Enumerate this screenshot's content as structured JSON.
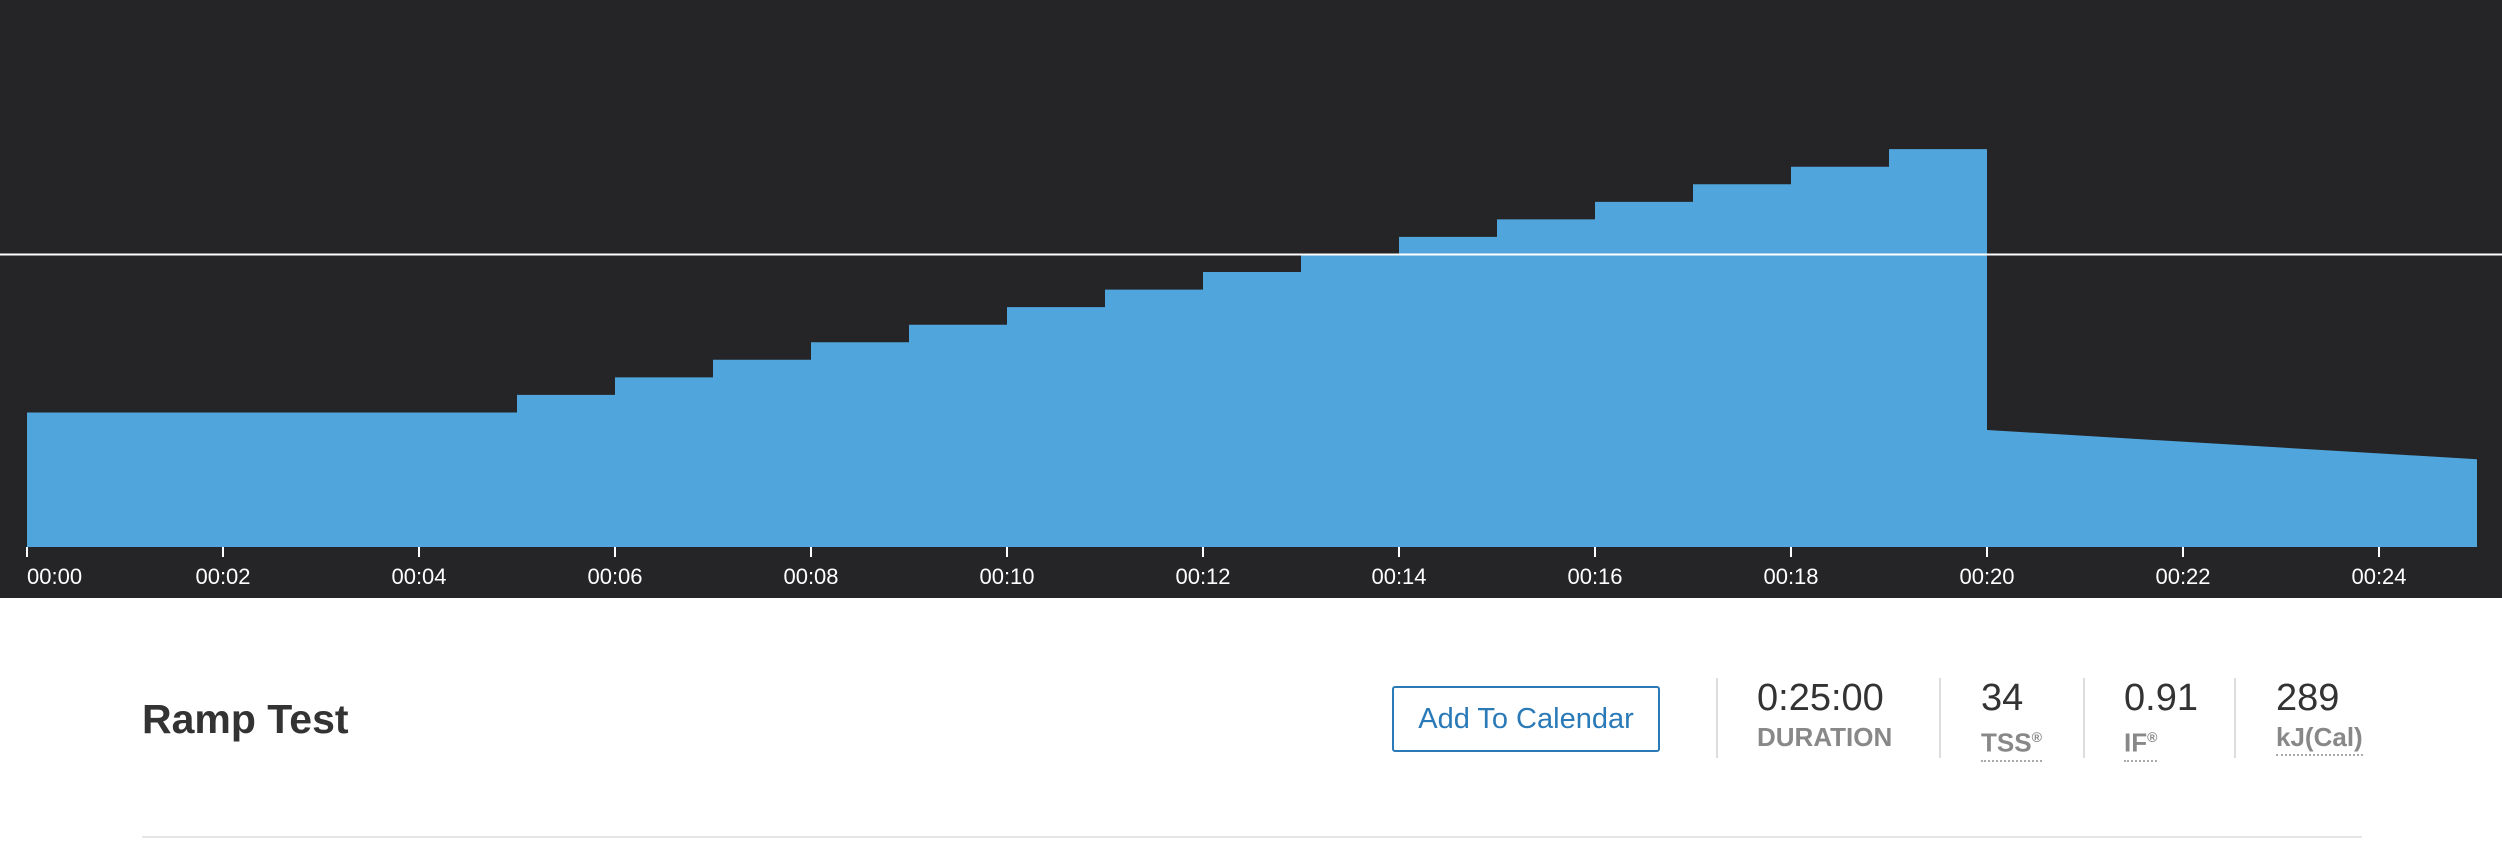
{
  "chart_data": {
    "type": "workout",
    "xlim": [
      0,
      25
    ],
    "ylim": [
      0,
      187
    ],
    "threshold": 100,
    "color": "#50a6dc",
    "xticks": [
      {
        "value": 0,
        "label": "00:00"
      },
      {
        "value": 2,
        "label": "00:02"
      },
      {
        "value": 4,
        "label": "00:04"
      },
      {
        "value": 6,
        "label": "00:06"
      },
      {
        "value": 8,
        "label": "00:08"
      },
      {
        "value": 10,
        "label": "00:10"
      },
      {
        "value": 12,
        "label": "00:12"
      },
      {
        "value": 14,
        "label": "00:14"
      },
      {
        "value": 16,
        "label": "00:16"
      },
      {
        "value": 18,
        "label": "00:18"
      },
      {
        "value": 20,
        "label": "00:20"
      },
      {
        "value": 22,
        "label": "00:22"
      },
      {
        "value": 24,
        "label": "00:24"
      }
    ],
    "segments": [
      {
        "start": 0,
        "end": 5,
        "from": 46,
        "to": 46
      },
      {
        "start": 5,
        "end": 6,
        "from": 52,
        "to": 52
      },
      {
        "start": 6,
        "end": 7,
        "from": 58,
        "to": 58
      },
      {
        "start": 7,
        "end": 8,
        "from": 64,
        "to": 64
      },
      {
        "start": 8,
        "end": 9,
        "from": 70,
        "to": 70
      },
      {
        "start": 9,
        "end": 10,
        "from": 76,
        "to": 76
      },
      {
        "start": 10,
        "end": 11,
        "from": 82,
        "to": 82
      },
      {
        "start": 11,
        "end": 12,
        "from": 88,
        "to": 88
      },
      {
        "start": 12,
        "end": 13,
        "from": 94,
        "to": 94
      },
      {
        "start": 13,
        "end": 14,
        "from": 100,
        "to": 100
      },
      {
        "start": 14,
        "end": 15,
        "from": 106,
        "to": 106
      },
      {
        "start": 15,
        "end": 16,
        "from": 112,
        "to": 112
      },
      {
        "start": 16,
        "end": 17,
        "from": 118,
        "to": 118
      },
      {
        "start": 17,
        "end": 18,
        "from": 124,
        "to": 124
      },
      {
        "start": 18,
        "end": 19,
        "from": 130,
        "to": 130
      },
      {
        "start": 19,
        "end": 20,
        "from": 136,
        "to": 136
      },
      {
        "start": 20,
        "end": 25,
        "from": 40,
        "to": 30
      }
    ]
  },
  "workout": {
    "title": "Ramp Test",
    "button": "Add To Calendar",
    "stats": [
      {
        "value": "0:25:00",
        "label": "DURATION"
      },
      {
        "value": "34",
        "label": "TSS",
        "mark": "®"
      },
      {
        "value": "0.91",
        "label": "IF",
        "mark": "®"
      },
      {
        "value": "289",
        "label": "kJ(Cal)"
      }
    ]
  }
}
